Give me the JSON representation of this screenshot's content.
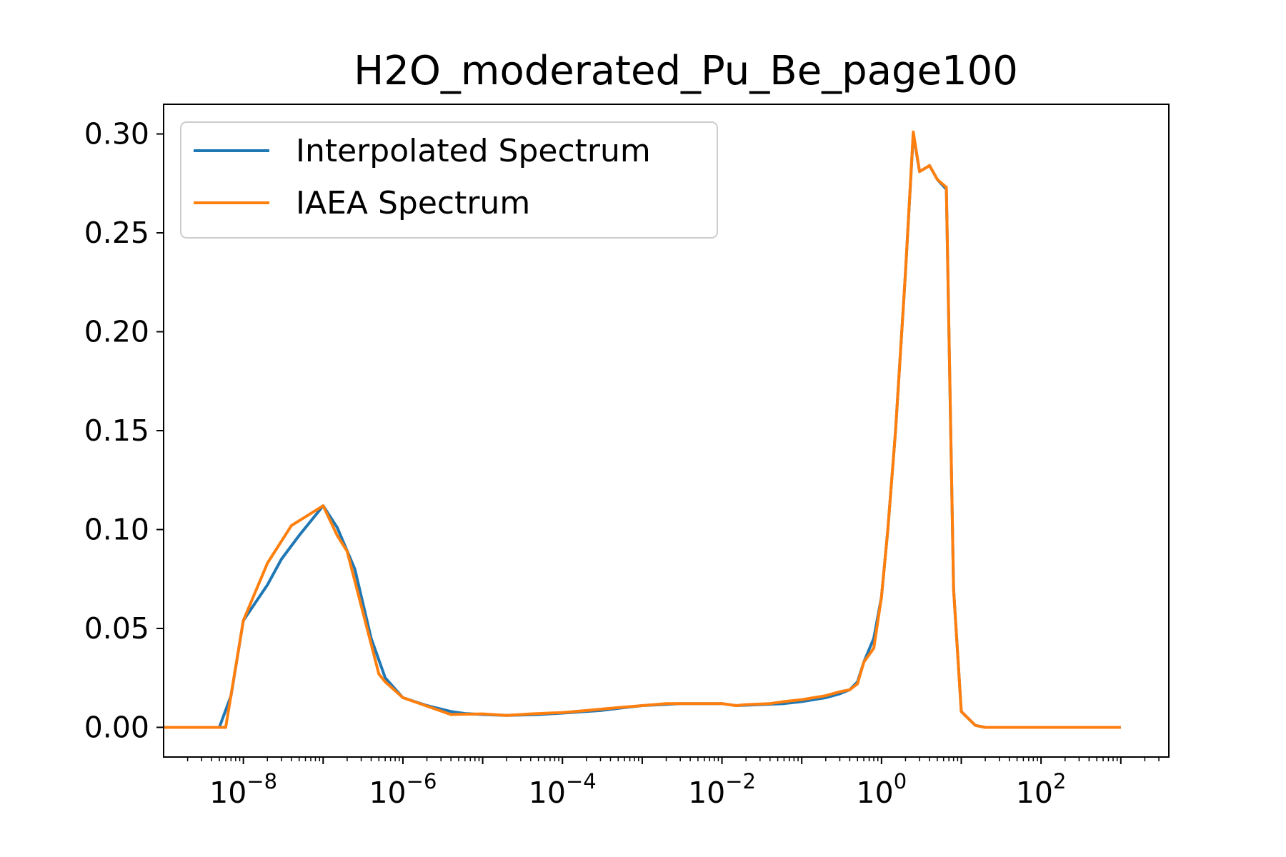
{
  "chart_data": {
    "type": "line",
    "title": "H2O_moderated_Pu_Be_page100",
    "xlabel": "",
    "ylabel": "",
    "xscale": "log",
    "xlim": [
      1e-09,
      4000
    ],
    "ylim": [
      -0.015,
      0.315
    ],
    "grid": false,
    "legend_position": "top-left",
    "x_ticks": [
      {
        "base": "10",
        "exp": "−8",
        "value": 1e-08
      },
      {
        "base": "10",
        "exp": "−6",
        "value": 1e-06
      },
      {
        "base": "10",
        "exp": "−4",
        "value": 0.0001
      },
      {
        "base": "10",
        "exp": "−2",
        "value": 0.01
      },
      {
        "base": "10",
        "exp": "0",
        "value": 1
      },
      {
        "base": "10",
        "exp": "2",
        "value": 100
      }
    ],
    "y_ticks": [
      {
        "label": "0.00",
        "value": 0.0
      },
      {
        "label": "0.05",
        "value": 0.05
      },
      {
        "label": "0.10",
        "value": 0.1
      },
      {
        "label": "0.15",
        "value": 0.15
      },
      {
        "label": "0.20",
        "value": 0.2
      },
      {
        "label": "0.25",
        "value": 0.25
      },
      {
        "label": "0.30",
        "value": 0.3
      }
    ],
    "series": [
      {
        "name": "Interpolated Spectrum",
        "color": "#1f77b4",
        "x": [
          1e-09,
          5e-09,
          7e-09,
          1e-08,
          2e-08,
          3e-08,
          5e-08,
          1e-07,
          1.5e-07,
          2.5e-07,
          4e-07,
          6e-07,
          1e-06,
          2e-06,
          4e-06,
          6e-06,
          1e-05,
          2e-05,
          5e-05,
          0.0001,
          0.0003,
          0.0006,
          0.001,
          0.003,
          0.01,
          0.015,
          0.03,
          0.06,
          0.1,
          0.2,
          0.3,
          0.4,
          0.5,
          0.6,
          0.8,
          1.0,
          1.2,
          1.5,
          2.0,
          2.5,
          3.0,
          4.0,
          5.0,
          6.5,
          8.0,
          10.0,
          15.0,
          20.0,
          30.0,
          100.0,
          300.0,
          1000.0
        ],
        "y": [
          0.0,
          0.0,
          0.016,
          0.054,
          0.072,
          0.085,
          0.097,
          0.112,
          0.101,
          0.08,
          0.045,
          0.025,
          0.015,
          0.011,
          0.008,
          0.007,
          0.0065,
          0.006,
          0.0065,
          0.0072,
          0.0085,
          0.01,
          0.011,
          0.012,
          0.012,
          0.011,
          0.0115,
          0.012,
          0.013,
          0.015,
          0.017,
          0.019,
          0.023,
          0.033,
          0.045,
          0.066,
          0.1,
          0.15,
          0.23,
          0.3,
          0.281,
          0.284,
          0.277,
          0.272,
          0.07,
          0.008,
          0.001,
          0.0,
          0.0,
          0.0,
          0.0,
          0.0
        ]
      },
      {
        "name": "IAEA Spectrum",
        "color": "#ff7f0e",
        "x": [
          1e-09,
          5e-09,
          6e-09,
          1e-08,
          2e-08,
          4e-08,
          1e-07,
          1.5e-07,
          2e-07,
          5e-07,
          6e-07,
          1e-06,
          4e-06,
          1e-05,
          2e-05,
          4e-05,
          0.0001,
          0.0002,
          0.0005,
          0.001,
          0.002,
          0.005,
          0.01,
          0.015,
          0.02,
          0.04,
          0.06,
          0.1,
          0.2,
          0.3,
          0.4,
          0.5,
          0.6,
          0.8,
          1.0,
          1.2,
          1.5,
          2.0,
          2.5,
          3.0,
          4.0,
          5.0,
          6.5,
          8.0,
          10.0,
          15.0,
          20.0,
          30.0,
          100.0,
          300.0,
          1000.0
        ],
        "y": [
          0.0,
          0.0,
          0.0,
          0.054,
          0.083,
          0.102,
          0.112,
          0.097,
          0.089,
          0.027,
          0.023,
          0.015,
          0.0065,
          0.0068,
          0.006,
          0.0068,
          0.0075,
          0.0085,
          0.01,
          0.011,
          0.012,
          0.012,
          0.012,
          0.011,
          0.0115,
          0.012,
          0.013,
          0.014,
          0.016,
          0.018,
          0.019,
          0.022,
          0.033,
          0.04,
          0.066,
          0.1,
          0.15,
          0.23,
          0.301,
          0.281,
          0.284,
          0.277,
          0.273,
          0.07,
          0.008,
          0.001,
          0.0,
          0.0,
          0.0,
          0.0,
          0.0
        ]
      }
    ]
  }
}
